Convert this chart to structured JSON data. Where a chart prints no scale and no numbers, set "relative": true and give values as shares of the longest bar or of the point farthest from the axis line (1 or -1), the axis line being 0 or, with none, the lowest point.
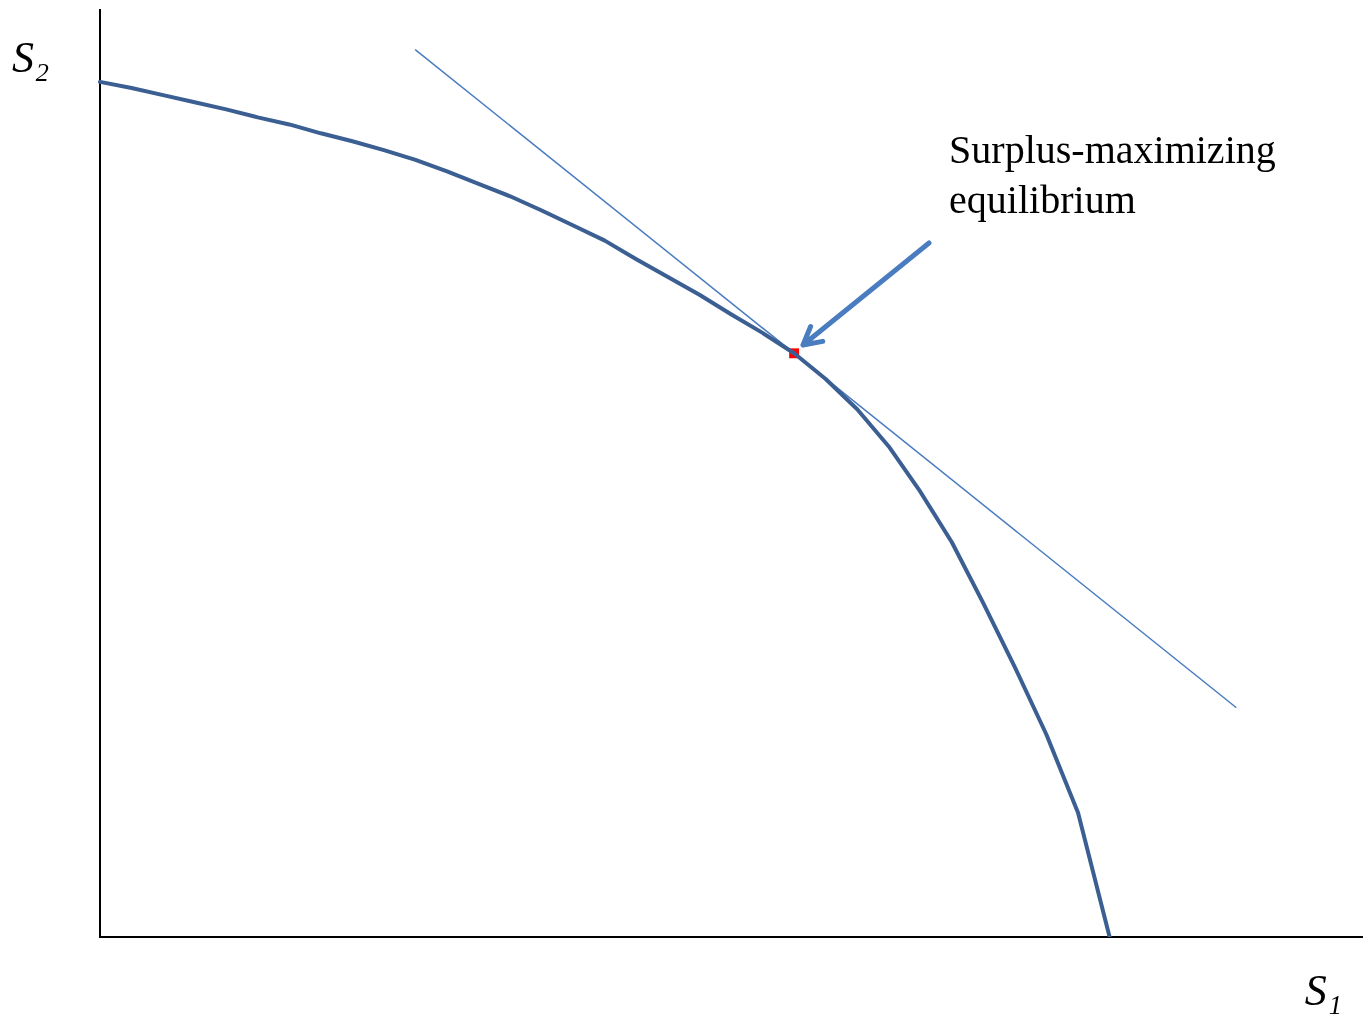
{
  "chart_data": {
    "type": "line",
    "relative": true,
    "xlabel": "S₁",
    "ylabel": "S₂",
    "grid": false,
    "legend": false,
    "marker": "none",
    "categories": [
      null,
      null,
      null,
      null,
      null,
      null,
      null,
      null,
      null,
      null,
      null,
      null,
      null,
      null,
      null,
      null,
      null,
      null,
      null,
      null,
      null,
      null,
      null,
      null,
      null,
      null,
      null,
      null,
      null,
      null,
      null,
      null,
      null,
      null,
      null,
      null,
      null,
      null,
      null,
      null,
      null
    ],
    "series": [
      {
        "color": "#3b5f92",
        "values": [
          0.964,
          0.957,
          0.949,
          0.941,
          0.933,
          0.924,
          0.916,
          0.906,
          0.897,
          0.887,
          0.876,
          0.863,
          0.849,
          0.835,
          0.819,
          0.802,
          0.785,
          0.764,
          0.744,
          0.724,
          0.702,
          0.681,
          0.658,
          0.629,
          0.595,
          0.553,
          0.502,
          0.445,
          0.376,
          0.304,
          0.228,
          0.14,
          0,
          null,
          null,
          null,
          null,
          null,
          null,
          null,
          null
        ]
      },
      {
        "color": "#4a7cc0",
        "values": [
          null,
          null,
          null,
          null,
          null,
          null,
          null,
          null,
          null,
          null,
          1,
          null,
          null,
          null,
          null,
          null,
          null,
          null,
          null,
          null,
          null,
          null,
          null,
          null,
          null,
          null,
          null,
          null,
          null,
          null,
          null,
          null,
          null,
          null,
          null,
          null,
          0.259,
          null,
          null,
          null,
          null
        ]
      },
      {
        "color": "#ff0000",
        "marker": "square",
        "values": [
          null,
          null,
          null,
          null,
          null,
          null,
          null,
          null,
          null,
          null,
          null,
          null,
          null,
          null,
          null,
          null,
          null,
          null,
          null,
          null,
          null,
          null,
          0.658,
          null,
          null,
          null,
          null,
          null,
          null,
          null,
          null,
          null,
          null,
          null,
          null,
          null,
          null,
          null,
          null,
          null,
          null
        ]
      }
    ],
    "annotations": [
      "Surplus-maximizing equilibrium"
    ]
  }
}
